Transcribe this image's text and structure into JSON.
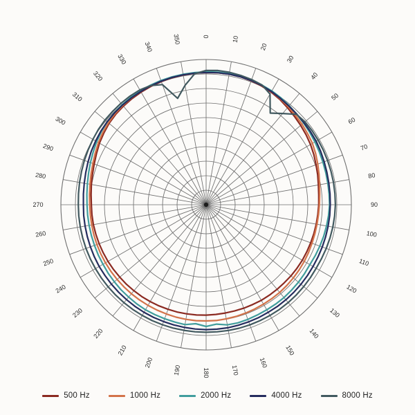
{
  "chart_data": {
    "type": "line",
    "polar": true,
    "title": "",
    "angle_unit": "degrees",
    "angle_direction": "clockwise-from-top",
    "grid_color": "#6e6e6e",
    "tick_label_color": "#2b2b2b",
    "radial_axis": {
      "min": 0,
      "max": 1,
      "rings": 10
    },
    "angular_ticks": [
      "0",
      "10",
      "20",
      "30",
      "40",
      "50",
      "60",
      "70",
      "80",
      "90",
      "100",
      "110",
      "120",
      "130",
      "140",
      "150",
      "160",
      "170",
      "180",
      "190",
      "200",
      "210",
      "220",
      "230",
      "240",
      "250",
      "260",
      "270",
      "280",
      "290",
      "300",
      "310",
      "320",
      "330",
      "340",
      "350"
    ],
    "angles_deg": [
      0,
      5,
      10,
      15,
      20,
      25,
      30,
      35,
      40,
      45,
      50,
      55,
      60,
      65,
      70,
      75,
      80,
      85,
      90,
      95,
      100,
      105,
      110,
      115,
      120,
      125,
      130,
      135,
      140,
      145,
      150,
      155,
      160,
      165,
      170,
      175,
      180,
      185,
      190,
      195,
      200,
      205,
      210,
      215,
      220,
      225,
      230,
      235,
      240,
      245,
      250,
      255,
      260,
      265,
      270,
      275,
      280,
      285,
      290,
      295,
      300,
      305,
      310,
      315,
      320,
      325,
      330,
      335,
      340,
      345,
      350,
      355
    ],
    "series": [
      {
        "name": "500 Hz",
        "color": "#8b2a21",
        "values": [
          0.91,
          0.912,
          0.913,
          0.912,
          0.908,
          0.902,
          0.895,
          0.885,
          0.872,
          0.86,
          0.85,
          0.84,
          0.83,
          0.818,
          0.805,
          0.795,
          0.785,
          0.778,
          0.775,
          0.772,
          0.77,
          0.768,
          0.766,
          0.765,
          0.765,
          0.763,
          0.762,
          0.76,
          0.76,
          0.76,
          0.76,
          0.758,
          0.758,
          0.757,
          0.757,
          0.758,
          0.76,
          0.762,
          0.763,
          0.765,
          0.766,
          0.768,
          0.77,
          0.772,
          0.773,
          0.775,
          0.776,
          0.778,
          0.78,
          0.782,
          0.784,
          0.786,
          0.788,
          0.789,
          0.79,
          0.795,
          0.802,
          0.81,
          0.82,
          0.833,
          0.848,
          0.86,
          0.872,
          0.88,
          0.886,
          0.891,
          0.895,
          0.899,
          0.902,
          0.905,
          0.907,
          0.909
        ]
      },
      {
        "name": "1000 Hz",
        "color": "#d3734a",
        "values": [
          0.91,
          0.912,
          0.914,
          0.913,
          0.91,
          0.905,
          0.9,
          0.89,
          0.88,
          0.87,
          0.862,
          0.853,
          0.845,
          0.832,
          0.818,
          0.805,
          0.793,
          0.785,
          0.78,
          0.777,
          0.775,
          0.775,
          0.776,
          0.778,
          0.78,
          0.782,
          0.784,
          0.786,
          0.788,
          0.789,
          0.79,
          0.792,
          0.794,
          0.796,
          0.798,
          0.8,
          0.8,
          0.801,
          0.801,
          0.801,
          0.8,
          0.8,
          0.8,
          0.8,
          0.8,
          0.8,
          0.8,
          0.8,
          0.8,
          0.8,
          0.8,
          0.8,
          0.8,
          0.8,
          0.802,
          0.806,
          0.812,
          0.82,
          0.83,
          0.842,
          0.856,
          0.868,
          0.878,
          0.886,
          0.892,
          0.897,
          0.9,
          0.903,
          0.905,
          0.907,
          0.908,
          0.909
        ]
      },
      {
        "name": "2000 Hz",
        "color": "#409d9d",
        "values": [
          0.915,
          0.916,
          0.917,
          0.916,
          0.913,
          0.909,
          0.905,
          0.898,
          0.89,
          0.882,
          0.876,
          0.87,
          0.865,
          0.86,
          0.856,
          0.853,
          0.851,
          0.85,
          0.85,
          0.846,
          0.842,
          0.838,
          0.833,
          0.829,
          0.825,
          0.827,
          0.83,
          0.832,
          0.834,
          0.835,
          0.835,
          0.837,
          0.84,
          0.842,
          0.84,
          0.825,
          0.838,
          0.822,
          0.838,
          0.836,
          0.835,
          0.835,
          0.835,
          0.833,
          0.83,
          0.828,
          0.825,
          0.823,
          0.82,
          0.819,
          0.818,
          0.818,
          0.818,
          0.819,
          0.82,
          0.824,
          0.83,
          0.838,
          0.848,
          0.858,
          0.87,
          0.88,
          0.888,
          0.894,
          0.899,
          0.903,
          0.905,
          0.908,
          0.91,
          0.911,
          0.912,
          0.913
        ]
      },
      {
        "name": "4000 Hz",
        "color": "#252c5e",
        "values": [
          0.91,
          0.912,
          0.913,
          0.912,
          0.91,
          0.906,
          0.9,
          0.893,
          0.887,
          0.882,
          0.879,
          0.877,
          0.875,
          0.87,
          0.865,
          0.861,
          0.858,
          0.856,
          0.855,
          0.854,
          0.853,
          0.852,
          0.851,
          0.85,
          0.85,
          0.851,
          0.852,
          0.853,
          0.854,
          0.855,
          0.855,
          0.857,
          0.858,
          0.859,
          0.86,
          0.86,
          0.86,
          0.859,
          0.858,
          0.857,
          0.856,
          0.856,
          0.855,
          0.854,
          0.853,
          0.852,
          0.851,
          0.85,
          0.85,
          0.849,
          0.848,
          0.847,
          0.846,
          0.846,
          0.845,
          0.848,
          0.852,
          0.858,
          0.865,
          0.872,
          0.878,
          0.884,
          0.889,
          0.893,
          0.896,
          0.898,
          0.9,
          0.903,
          0.905,
          0.907,
          0.908,
          0.909
        ]
      },
      {
        "name": "8000 Hz",
        "color": "#41595f",
        "values": [
          0.925,
          0.928,
          0.926,
          0.922,
          0.917,
          0.91,
          0.88,
          0.77,
          0.82,
          0.88,
          0.888,
          0.89,
          0.89,
          0.89,
          0.89,
          0.89,
          0.89,
          0.89,
          0.89,
          0.888,
          0.886,
          0.883,
          0.88,
          0.877,
          0.875,
          0.876,
          0.877,
          0.878,
          0.879,
          0.88,
          0.88,
          0.88,
          0.88,
          0.88,
          0.879,
          0.878,
          0.878,
          0.878,
          0.878,
          0.879,
          0.879,
          0.88,
          0.88,
          0.88,
          0.88,
          0.88,
          0.88,
          0.88,
          0.88,
          0.88,
          0.88,
          0.88,
          0.88,
          0.88,
          0.88,
          0.882,
          0.885,
          0.888,
          0.892,
          0.896,
          0.9,
          0.905,
          0.908,
          0.91,
          0.912,
          0.913,
          0.913,
          0.905,
          0.88,
          0.758,
          0.835,
          0.905
        ]
      }
    ],
    "legend_position": "bottom"
  }
}
